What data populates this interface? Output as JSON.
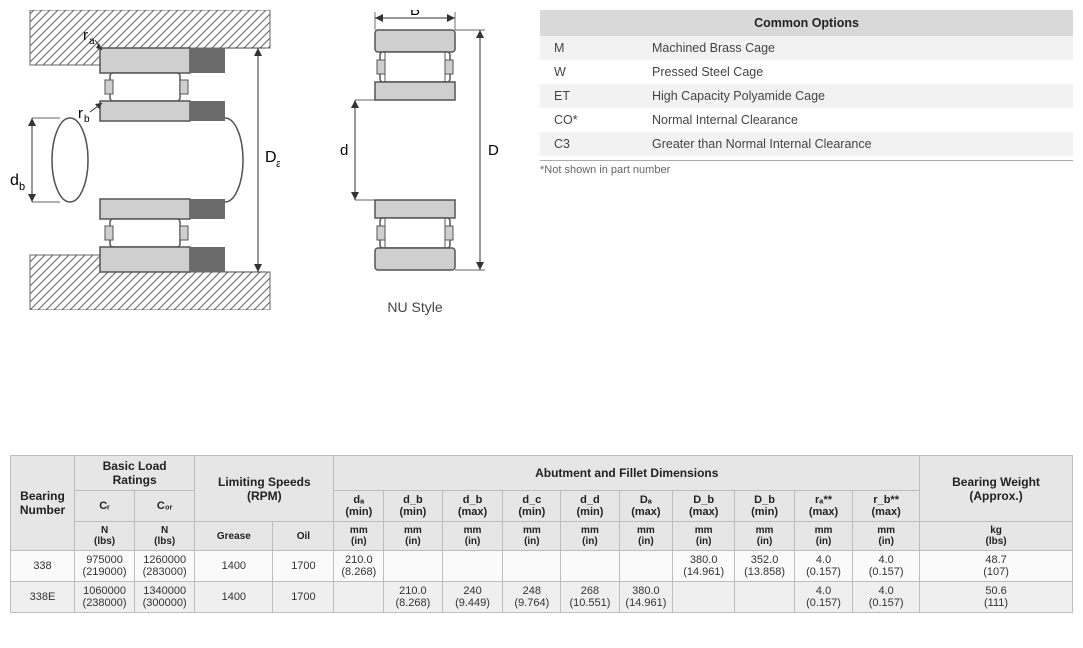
{
  "diagram2_caption": "NU Style",
  "diagram_labels": {
    "ra": "rₐ",
    "rb": "r_b",
    "db": "d_b",
    "Da": "Dₐ",
    "B": "B",
    "d": "d",
    "D": "D"
  },
  "options": {
    "title": "Common Options",
    "rows": [
      {
        "code": "M",
        "desc": "Machined Brass Cage"
      },
      {
        "code": "W",
        "desc": "Pressed Steel Cage"
      },
      {
        "code": "ET",
        "desc": "High Capacity Polyamide Cage"
      },
      {
        "code": "CO*",
        "desc": "Normal Internal Clearance"
      },
      {
        "code": "C3",
        "desc": "Greater than Normal Internal Clearance"
      }
    ],
    "footnote": "*Not shown in part number"
  },
  "spec": {
    "groups": {
      "bearing_number": "Bearing\nNumber",
      "basic_load": "Basic Load Ratings",
      "limiting_speeds": "Limiting Speeds (RPM)",
      "abutment": "Abutment and Fillet Dimensions",
      "weight": "Bearing Weight (Approx.)"
    },
    "sub_headers": {
      "cr": "Cᵣ",
      "cor": "C₀ᵣ",
      "grease": "Grease",
      "oil": "Oil",
      "da_min": "dₐ (min)",
      "db_min": "d_b (min)",
      "db_max": "d_b (max)",
      "dc_min": "d_c (min)",
      "dd_min": "d_d (min)",
      "Da_max": "Dₐ (max)",
      "Db_max": "D_b (max)",
      "Db_min": "D_b (min)",
      "ra_max": "rₐ** (max)",
      "rb_max": "r_b** (max)"
    },
    "unit_row": {
      "n_lbs": "N\n(lbs)",
      "mm_in": "mm\n(in)",
      "kg_lbs": "kg\n(lbs)"
    },
    "rows": [
      {
        "bn": "338",
        "cr": "975000\n(219000)",
        "cor": "1260000\n(283000)",
        "grease": "1400",
        "oil": "1700",
        "da_min": "210.0\n(8.268)",
        "db_min": "",
        "db_max": "",
        "dc_min": "",
        "dd_min": "",
        "Da_max": "",
        "Db_max": "380.0\n(14.961)",
        "Db_min": "352.0\n(13.858)",
        "ra_max": "4.0\n(0.157)",
        "rb_max": "4.0\n(0.157)",
        "wt": "48.7\n(107)"
      },
      {
        "bn": "338E",
        "cr": "1060000\n(238000)",
        "cor": "1340000\n(300000)",
        "grease": "1400",
        "oil": "1700",
        "da_min": "",
        "db_min": "210.0\n(8.268)",
        "db_max": "240\n(9.449)",
        "dc_min": "248\n(9.764)",
        "dd_min": "268\n(10.551)",
        "Da_max": "380.0\n(14.961)",
        "Db_max": "",
        "Db_min": "",
        "ra_max": "4.0\n(0.157)",
        "rb_max": "4.0\n(0.157)",
        "wt": "50.6\n(111)"
      }
    ]
  },
  "colors": {
    "hatch": "#777777",
    "bearing_fill": "#cfcfcf",
    "bearing_stroke": "#555555",
    "dark_block": "#6b6b6b"
  }
}
